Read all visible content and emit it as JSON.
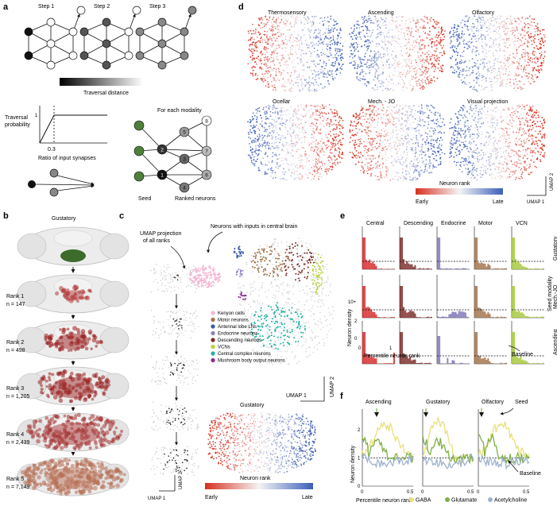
{
  "panel_labels": {
    "a": "a",
    "b": "b",
    "c": "c",
    "d": "d",
    "e": "e",
    "f": "f"
  },
  "panel_a": {
    "step_labels": [
      "Step 1",
      "Step 2",
      "Step 3"
    ],
    "gradient_label": "Traversal distance",
    "prob_ylabel_line1": "Traversal",
    "prob_ylabel_line2": "probability",
    "prob_x_tick": "0.3",
    "prob_y_tick": "1",
    "prob_xlabel": "Ratio of input synapses",
    "modality_title": "For each modality",
    "seed_label": "Seed",
    "ranked_label": "Ranked neurons",
    "node_numbers": [
      "1",
      "2",
      "3",
      "4",
      "5",
      "6",
      "7",
      "8"
    ]
  },
  "panel_b": {
    "title": "Gustatory",
    "ranks": [
      {
        "label": "Rank 1",
        "n": "n = 147"
      },
      {
        "label": "Rank 2",
        "n": "n = 498"
      },
      {
        "label": "Rank 3",
        "n": "n = 1,205"
      },
      {
        "label": "Rank 4",
        "n": "n = 2,439"
      },
      {
        "label": "Rank 5",
        "n": "n = 7,149"
      }
    ]
  },
  "panel_c": {
    "proj_label_line1": "UMAP projection",
    "proj_label_line2": "of all ranks",
    "title": "Neurons with inputs in central brain",
    "legend": [
      {
        "label": "Kenyon cells",
        "color": "#f3b6d4"
      },
      {
        "label": "Motor neurons",
        "color": "#a0714a"
      },
      {
        "label": "Antennal lobe LNs",
        "color": "#3a5ba8"
      },
      {
        "label": "Endocrine neurons",
        "color": "#8b80c0"
      },
      {
        "label": "Descending neurons",
        "color": "#7a2a28"
      },
      {
        "label": "VCNs",
        "color": "#b9d23e"
      },
      {
        "label": "Central complex neurons",
        "color": "#1fb2a6"
      },
      {
        "label": "Mushroom body output neurons",
        "color": "#8a2a8a"
      }
    ],
    "umap1": "UMAP 1",
    "umap2": "UMAP 2",
    "gustatory_title": "Gustatory",
    "rank_bar_label": "Neuron rank",
    "early": "Early",
    "late": "Late"
  },
  "panel_d": {
    "titles": [
      "Thermosensory",
      "Ascending",
      "Olfactory",
      "Ocellar",
      "Mech. - JO",
      "Visual projection"
    ],
    "rank_bar_label": "Neuron rank",
    "early": "Early",
    "late": "Late",
    "umap1": "UMAP 1",
    "umap2": "UMAP 2"
  },
  "panel_e": {
    "columns": [
      {
        "label": "Central",
        "color": "#d62728"
      },
      {
        "label": "Descending",
        "color": "#7a2a28"
      },
      {
        "label": "Endocrine",
        "color": "#7f75b8"
      },
      {
        "label": "Motor",
        "color": "#a0714a"
      },
      {
        "label": "VCN",
        "color": "#a6c83a"
      }
    ],
    "rows": [
      "Gustatory",
      "Mech.-JO",
      "Ascending"
    ],
    "seed_modality": "Seed modality",
    "ylabel": "Neuron density",
    "y_tick_top": "10+",
    "y_tick_mid": "2",
    "y_tick_low": "0",
    "x_tick_0": "0",
    "x_tick_1": "1",
    "xlabel": "Percentile neuron rank",
    "baseline": "Baseline"
  },
  "panel_f": {
    "seed_label": "Seed",
    "panels": [
      "Ascending",
      "Gustatory",
      "Olfactory"
    ],
    "ylabel": "Neuron density",
    "yticks": [
      "0",
      "1",
      "2"
    ],
    "xticks": [
      "0",
      "0.5"
    ],
    "xlabel": "Percentile neuron rank",
    "baseline": "Baseline",
    "legend": [
      {
        "label": "GABA",
        "color": "#e8e07a"
      },
      {
        "label": "Glutamate",
        "color": "#7fb04a"
      },
      {
        "label": "Acetylcholine",
        "color": "#9fb3cf"
      }
    ]
  },
  "colors": {
    "red_rank": "#d93a2b",
    "blue_rank": "#4a6fc0",
    "dark_red": "#8b1a1a",
    "seed_green": "#4f7f3a"
  }
}
